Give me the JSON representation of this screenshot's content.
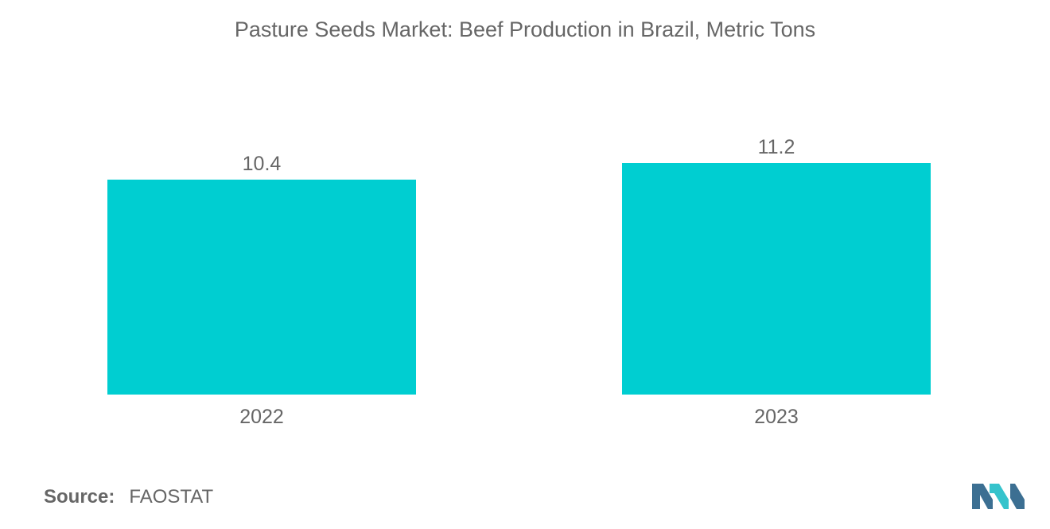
{
  "chart_data": {
    "type": "bar",
    "title": "Pasture Seeds Market: Beef Production in Brazil, Metric Tons",
    "categories": [
      "2022",
      "2023"
    ],
    "values": [
      10.4,
      11.2
    ],
    "data_labels": [
      "10.4",
      "11.2"
    ],
    "xlabel": "",
    "ylabel": "",
    "ylim": [
      0,
      11.2
    ],
    "grid": false,
    "legend": "none",
    "bar_color": "#00CED1"
  },
  "source": {
    "label": "Source:",
    "value": "FAOSTAT"
  },
  "colors": {
    "text": "#666666",
    "bar": "#00CED1",
    "logo_dark": "#3C6F92",
    "logo_light": "#35C3CC"
  }
}
